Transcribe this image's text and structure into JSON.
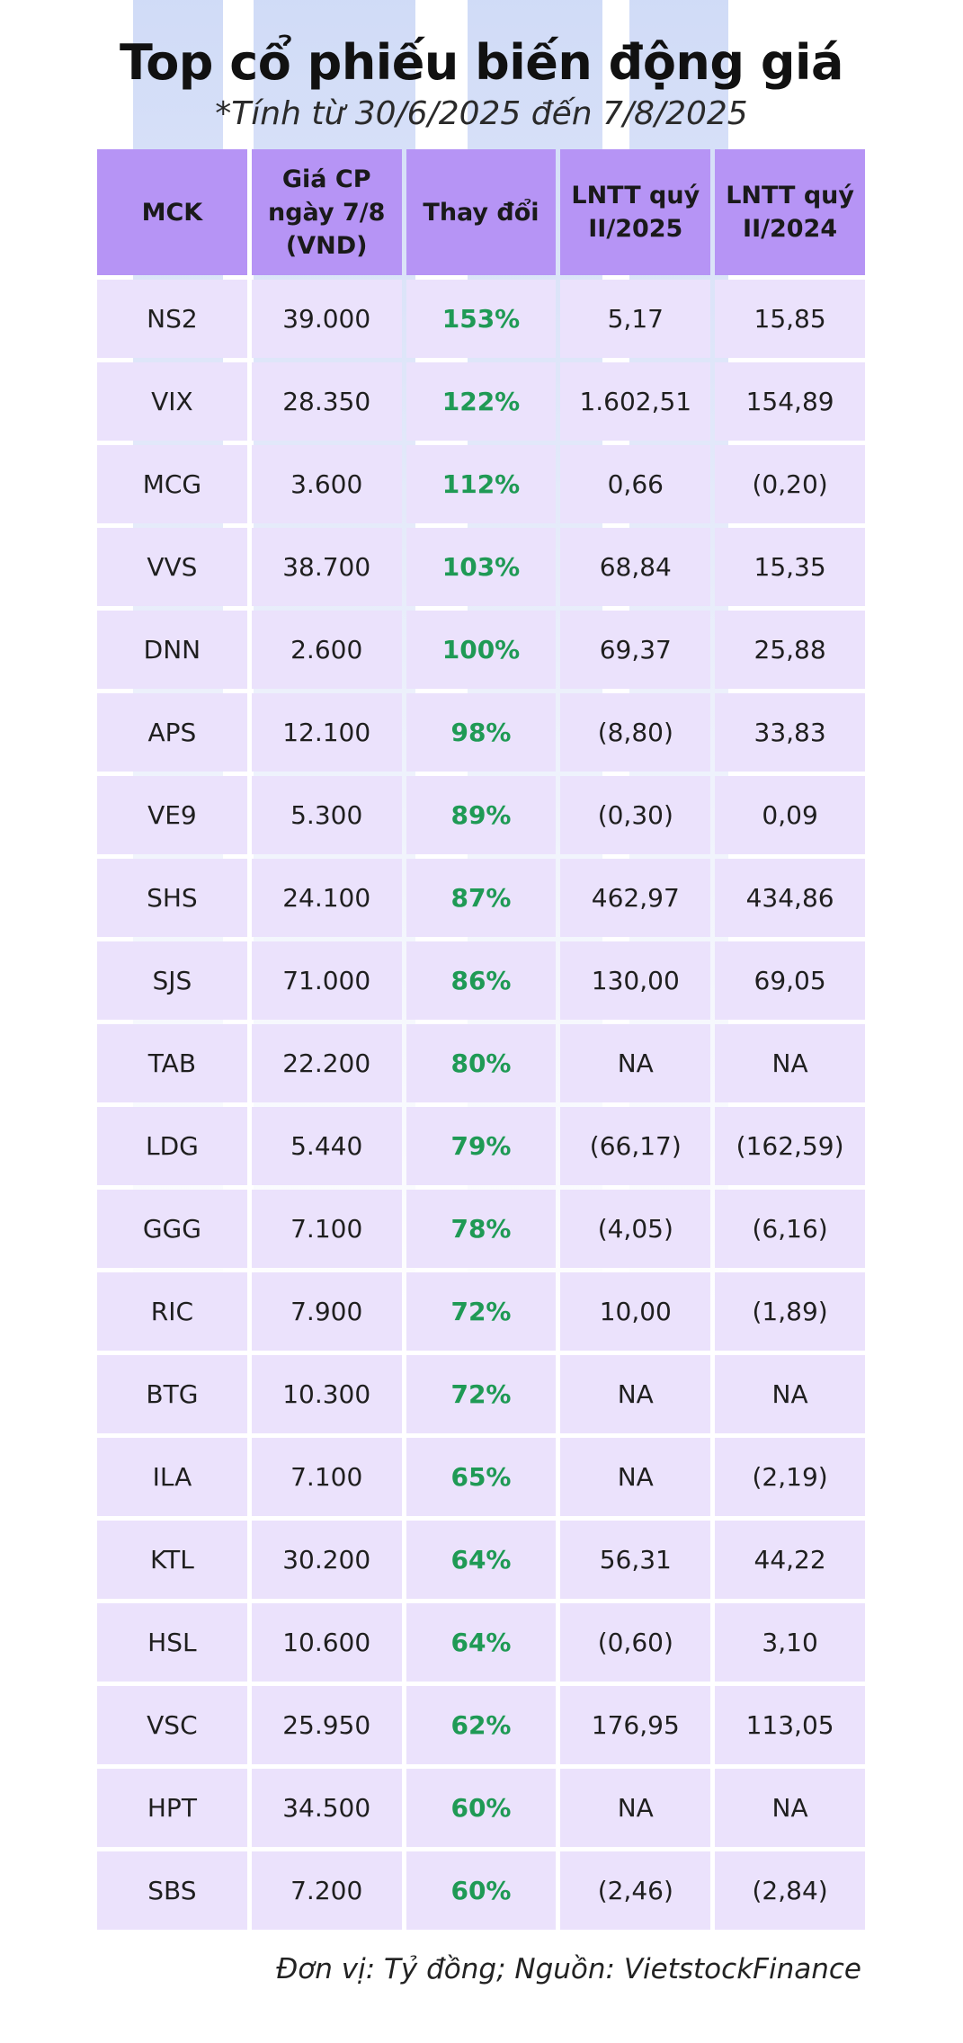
{
  "title": "Top cổ phiếu biến động giá",
  "subtitle": "*Tính từ 30/6/2025 đến 7/8/2025",
  "colors": {
    "header_bg": "#b694f5",
    "row_bg": "#ebe2fc",
    "change_text": "#1f9a55"
  },
  "table": {
    "headers": [
      "MCK",
      "Giá CP ngày 7/8 (VND)",
      "Thay đổi",
      "LNTT quý II/2025",
      "LNTT quý II/2024"
    ],
    "rows": [
      [
        "NS2",
        "39.000",
        "153%",
        "5,17",
        "15,85"
      ],
      [
        "VIX",
        "28.350",
        "122%",
        "1.602,51",
        "154,89"
      ],
      [
        "MCG",
        "3.600",
        "112%",
        "0,66",
        "(0,20)"
      ],
      [
        "VVS",
        "38.700",
        "103%",
        "68,84",
        "15,35"
      ],
      [
        "DNN",
        "2.600",
        "100%",
        "69,37",
        "25,88"
      ],
      [
        "APS",
        "12.100",
        "98%",
        "(8,80)",
        "33,83"
      ],
      [
        "VE9",
        "5.300",
        "89%",
        "(0,30)",
        "0,09"
      ],
      [
        "SHS",
        "24.100",
        "87%",
        "462,97",
        "434,86"
      ],
      [
        "SJS",
        "71.000",
        "86%",
        "130,00",
        "69,05"
      ],
      [
        "TAB",
        "22.200",
        "80%",
        "NA",
        "NA"
      ],
      [
        "LDG",
        "5.440",
        "79%",
        "(66,17)",
        "(162,59)"
      ],
      [
        "GGG",
        "7.100",
        "78%",
        "(4,05)",
        "(6,16)"
      ],
      [
        "RIC",
        "7.900",
        "72%",
        "10,00",
        "(1,89)"
      ],
      [
        "BTG",
        "10.300",
        "72%",
        "NA",
        "NA"
      ],
      [
        "ILA",
        "7.100",
        "65%",
        "NA",
        "(2,19)"
      ],
      [
        "KTL",
        "30.200",
        "64%",
        "56,31",
        "44,22"
      ],
      [
        "HSL",
        "10.600",
        "64%",
        "(0,60)",
        "3,10"
      ],
      [
        "VSC",
        "25.950",
        "62%",
        "176,95",
        "113,05"
      ],
      [
        "HPT",
        "34.500",
        "60%",
        "NA",
        "NA"
      ],
      [
        "SBS",
        "7.200",
        "60%",
        "(2,46)",
        "(2,84)"
      ]
    ]
  },
  "footer": "Đơn vị: Tỷ đồng; Nguồn: VietstockFinance"
}
